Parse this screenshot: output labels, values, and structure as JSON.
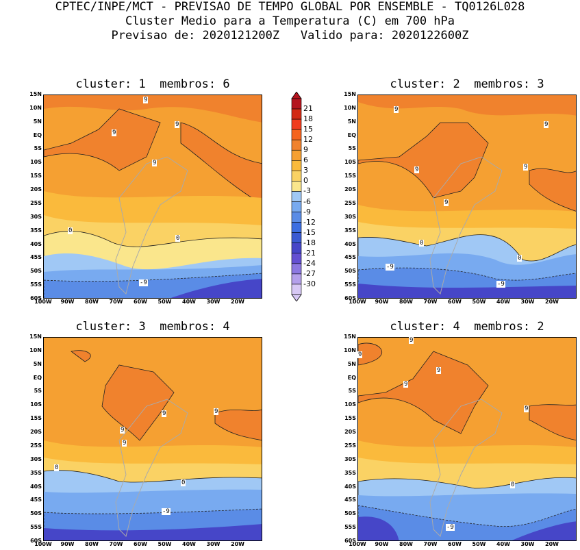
{
  "header": {
    "line1": "CPTEC/INPE/MCT - PREVISAO DE TEMPO GLOBAL POR ENSEMBLE - TQ0126L028",
    "line2": "Cluster Medio para a Temperatura (C) em 700 hPa",
    "line3": "Previsao de: 2020121200Z   Valido para: 2020122600Z"
  },
  "panels": [
    {
      "title": "cluster: 1  membros: 6"
    },
    {
      "title": "cluster: 2  membros: 3"
    },
    {
      "title": "cluster: 3  membros: 4"
    },
    {
      "title": "cluster: 4  membros: 2"
    }
  ],
  "lat_ticks": [
    "15N",
    "10N",
    "5N",
    "EQ",
    "5S",
    "10S",
    "15S",
    "20S",
    "25S",
    "30S",
    "35S",
    "40S",
    "45S",
    "50S",
    "55S",
    "60S"
  ],
  "lon_ticks": [
    "100W",
    "90W",
    "80W",
    "70W",
    "60W",
    "50W",
    "40W",
    "30W",
    "20W"
  ],
  "colorbar": {
    "labels": [
      "21",
      "18",
      "15",
      "12",
      "9",
      "6",
      "3",
      "0",
      "-3",
      "-6",
      "-9",
      "-12",
      "-15",
      "-18",
      "-21",
      "-24",
      "-27",
      "-30"
    ],
    "colors": [
      "#b4141e",
      "#d22a14",
      "#f03c1e",
      "#f5641e",
      "#f0822d",
      "#f5a032",
      "#faba3c",
      "#fad264",
      "#fae68c",
      "#a0c8f5",
      "#78aaf0",
      "#5a8ce6",
      "#3c6ee1",
      "#3a5ad2",
      "#4646c8",
      "#6450d2",
      "#8c78e1",
      "#b4a0eb",
      "#d7c8f5"
    ]
  },
  "contour_labels": {
    "p1": [
      "9",
      "9",
      "9",
      "9",
      "0",
      "0",
      "-9"
    ],
    "p2": [
      "9",
      "9",
      "9",
      "9",
      "9",
      "0",
      "0",
      "-9",
      "-9"
    ],
    "p3": [
      "9",
      "9",
      "9",
      "9",
      "0",
      "0",
      "-9"
    ],
    "p4": [
      "9",
      "9",
      "9",
      "9",
      "9",
      "0",
      "-9"
    ]
  }
}
